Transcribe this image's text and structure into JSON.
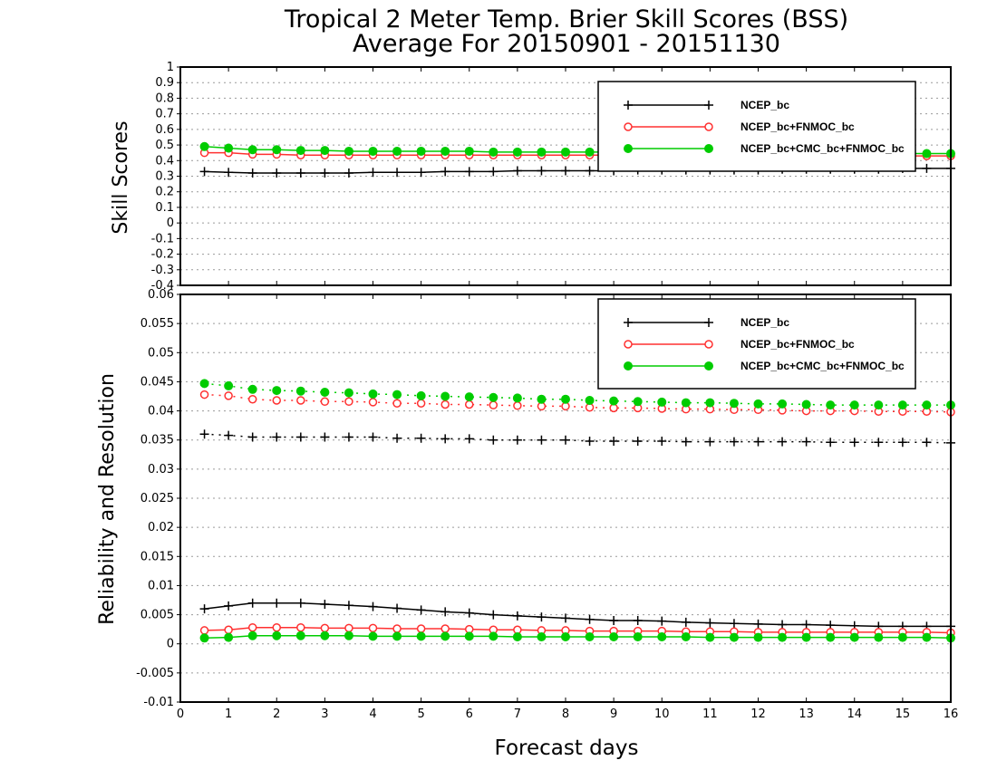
{
  "title": {
    "line1": "Tropical 2 Meter Temp. Brier Skill Scores (BSS)",
    "line2": "Average For 20150901 - 20151130"
  },
  "colors": {
    "NCEP_bc": "#000000",
    "NCEP_bc+FNMOC_bc": "#ff3030",
    "NCEP_bc+CMC_bc+FNMOC_bc": "#00cc00"
  },
  "chart_data": [
    {
      "type": "line",
      "panel": "top",
      "ylabel": "Skill Scores",
      "xlabel": "",
      "xlim": [
        0,
        16
      ],
      "ylim": [
        -0.4,
        1
      ],
      "y_ticks": [
        "-0.4",
        "-0.3",
        "-0.2",
        "-0.1",
        "0",
        "0.1",
        "0.2",
        "0.3",
        "0.4",
        "0.5",
        "0.6",
        "0.7",
        "0.8",
        "0.9",
        "1"
      ],
      "grid": true,
      "legend": "top-right",
      "x": [
        0.5,
        1,
        1.5,
        2,
        2.5,
        3,
        3.5,
        4,
        4.5,
        5,
        5.5,
        6,
        6.5,
        7,
        7.5,
        8,
        8.5,
        9,
        9.5,
        10,
        10.5,
        11,
        11.5,
        12,
        12.5,
        13,
        13.5,
        14,
        14.5,
        15,
        15.5,
        16
      ],
      "series": [
        {
          "name": "NCEP_bc",
          "marker": "plus",
          "line": "solid",
          "values": [
            0.33,
            0.325,
            0.32,
            0.32,
            0.32,
            0.32,
            0.32,
            0.325,
            0.325,
            0.325,
            0.33,
            0.33,
            0.33,
            0.335,
            0.335,
            0.335,
            0.335,
            0.335,
            0.34,
            0.34,
            0.34,
            0.34,
            0.34,
            0.34,
            0.345,
            0.345,
            0.345,
            0.345,
            0.345,
            0.35,
            0.35,
            0.35
          ]
        },
        {
          "name": "NCEP_bc+FNMOC_bc",
          "marker": "open-circle",
          "line": "solid",
          "values": [
            0.45,
            0.45,
            0.44,
            0.44,
            0.435,
            0.435,
            0.435,
            0.435,
            0.435,
            0.435,
            0.435,
            0.435,
            0.435,
            0.435,
            0.435,
            0.435,
            0.435,
            0.435,
            0.43,
            0.43,
            0.43,
            0.43,
            0.43,
            0.43,
            0.43,
            0.43,
            0.43,
            0.43,
            0.43,
            0.43,
            0.43,
            0.43
          ]
        },
        {
          "name": "NCEP_bc+CMC_bc+FNMOC_bc",
          "marker": "filled-circle",
          "line": "solid",
          "values": [
            0.49,
            0.48,
            0.47,
            0.47,
            0.465,
            0.465,
            0.46,
            0.46,
            0.46,
            0.46,
            0.46,
            0.46,
            0.455,
            0.455,
            0.455,
            0.455,
            0.455,
            0.455,
            0.45,
            0.45,
            0.45,
            0.45,
            0.45,
            0.45,
            0.45,
            0.45,
            0.45,
            0.445,
            0.445,
            0.445,
            0.445,
            0.445
          ]
        }
      ]
    },
    {
      "type": "line",
      "panel": "bottom",
      "ylabel": "Reliability and Resolution",
      "xlabel": "Forecast days",
      "xlim": [
        0,
        16
      ],
      "ylim": [
        -0.01,
        0.06
      ],
      "y_ticks": [
        "-0.01",
        "-0.005",
        "0",
        "0.005",
        "0.01",
        "0.015",
        "0.02",
        "0.025",
        "0.03",
        "0.035",
        "0.04",
        "0.045",
        "0.05",
        "0.055",
        "0.06"
      ],
      "x_ticks": [
        "0",
        "1",
        "2",
        "3",
        "4",
        "5",
        "6",
        "7",
        "8",
        "9",
        "10",
        "11",
        "12",
        "13",
        "14",
        "15",
        "16"
      ],
      "grid": true,
      "legend": "top-right",
      "x": [
        0.5,
        1,
        1.5,
        2,
        2.5,
        3,
        3.5,
        4,
        4.5,
        5,
        5.5,
        6,
        6.5,
        7,
        7.5,
        8,
        8.5,
        9,
        9.5,
        10,
        10.5,
        11,
        11.5,
        12,
        12.5,
        13,
        13.5,
        14,
        14.5,
        15,
        15.5,
        16
      ],
      "series": [
        {
          "name": "NCEP_bc",
          "kind": "resolution",
          "marker": "plus",
          "line": "dotted",
          "values": [
            0.036,
            0.0358,
            0.0355,
            0.0355,
            0.0355,
            0.0355,
            0.0355,
            0.0355,
            0.0353,
            0.0353,
            0.0352,
            0.0352,
            0.035,
            0.035,
            0.035,
            0.035,
            0.0348,
            0.0348,
            0.0348,
            0.0348,
            0.0347,
            0.0347,
            0.0347,
            0.0347,
            0.0347,
            0.0347,
            0.0346,
            0.0346,
            0.0346,
            0.0346,
            0.0346,
            0.0345
          ]
        },
        {
          "name": "NCEP_bc+FNMOC_bc",
          "kind": "resolution",
          "marker": "open-circle",
          "line": "dotted",
          "values": [
            0.0428,
            0.0426,
            0.042,
            0.0418,
            0.0418,
            0.0416,
            0.0416,
            0.0415,
            0.0413,
            0.0413,
            0.0411,
            0.0411,
            0.041,
            0.0409,
            0.0408,
            0.0408,
            0.0406,
            0.0405,
            0.0405,
            0.0404,
            0.0403,
            0.0403,
            0.0402,
            0.0402,
            0.0401,
            0.04,
            0.04,
            0.04,
            0.0399,
            0.0399,
            0.0399,
            0.0398
          ]
        },
        {
          "name": "NCEP_bc+CMC_bc+FNMOC_bc",
          "kind": "resolution",
          "marker": "filled-circle",
          "line": "dotted",
          "values": [
            0.0447,
            0.0443,
            0.0437,
            0.0435,
            0.0434,
            0.0432,
            0.0431,
            0.0429,
            0.0428,
            0.0426,
            0.0425,
            0.0424,
            0.0423,
            0.0422,
            0.042,
            0.042,
            0.0418,
            0.0417,
            0.0416,
            0.0415,
            0.0414,
            0.0414,
            0.0413,
            0.0412,
            0.0412,
            0.0411,
            0.041,
            0.041,
            0.041,
            0.041,
            0.041,
            0.041
          ]
        },
        {
          "name": "NCEP_bc",
          "kind": "reliability",
          "marker": "plus",
          "line": "solid",
          "values": [
            0.006,
            0.0065,
            0.007,
            0.007,
            0.007,
            0.0068,
            0.0066,
            0.0064,
            0.0061,
            0.0058,
            0.0055,
            0.0053,
            0.005,
            0.0048,
            0.0046,
            0.0044,
            0.0042,
            0.004,
            0.004,
            0.0039,
            0.0037,
            0.0036,
            0.0035,
            0.0034,
            0.0033,
            0.0033,
            0.0032,
            0.0031,
            0.003,
            0.003,
            0.003,
            0.003
          ]
        },
        {
          "name": "NCEP_bc+FNMOC_bc",
          "kind": "reliability",
          "marker": "open-circle",
          "line": "solid",
          "values": [
            0.0023,
            0.0024,
            0.0028,
            0.0028,
            0.0028,
            0.0027,
            0.0027,
            0.0027,
            0.0026,
            0.0026,
            0.0026,
            0.0025,
            0.0024,
            0.0024,
            0.0023,
            0.0023,
            0.0022,
            0.0022,
            0.0022,
            0.0022,
            0.0021,
            0.0021,
            0.0021,
            0.002,
            0.002,
            0.002,
            0.002,
            0.002,
            0.002,
            0.002,
            0.002,
            0.0019
          ]
        },
        {
          "name": "NCEP_bc+CMC_bc+FNMOC_bc",
          "kind": "reliability",
          "marker": "filled-circle",
          "line": "solid",
          "values": [
            0.001,
            0.0011,
            0.0014,
            0.0014,
            0.0014,
            0.0014,
            0.0014,
            0.0013,
            0.0013,
            0.0013,
            0.0013,
            0.0013,
            0.0013,
            0.0012,
            0.0012,
            0.0012,
            0.0012,
            0.0012,
            0.0012,
            0.0012,
            0.0012,
            0.0011,
            0.0011,
            0.0011,
            0.0011,
            0.0011,
            0.0011,
            0.0011,
            0.0011,
            0.0011,
            0.0011,
            0.001
          ]
        }
      ]
    }
  ],
  "legend_entries": [
    "NCEP_bc",
    "NCEP_bc+FNMOC_bc",
    "NCEP_bc+CMC_bc+FNMOC_bc"
  ]
}
